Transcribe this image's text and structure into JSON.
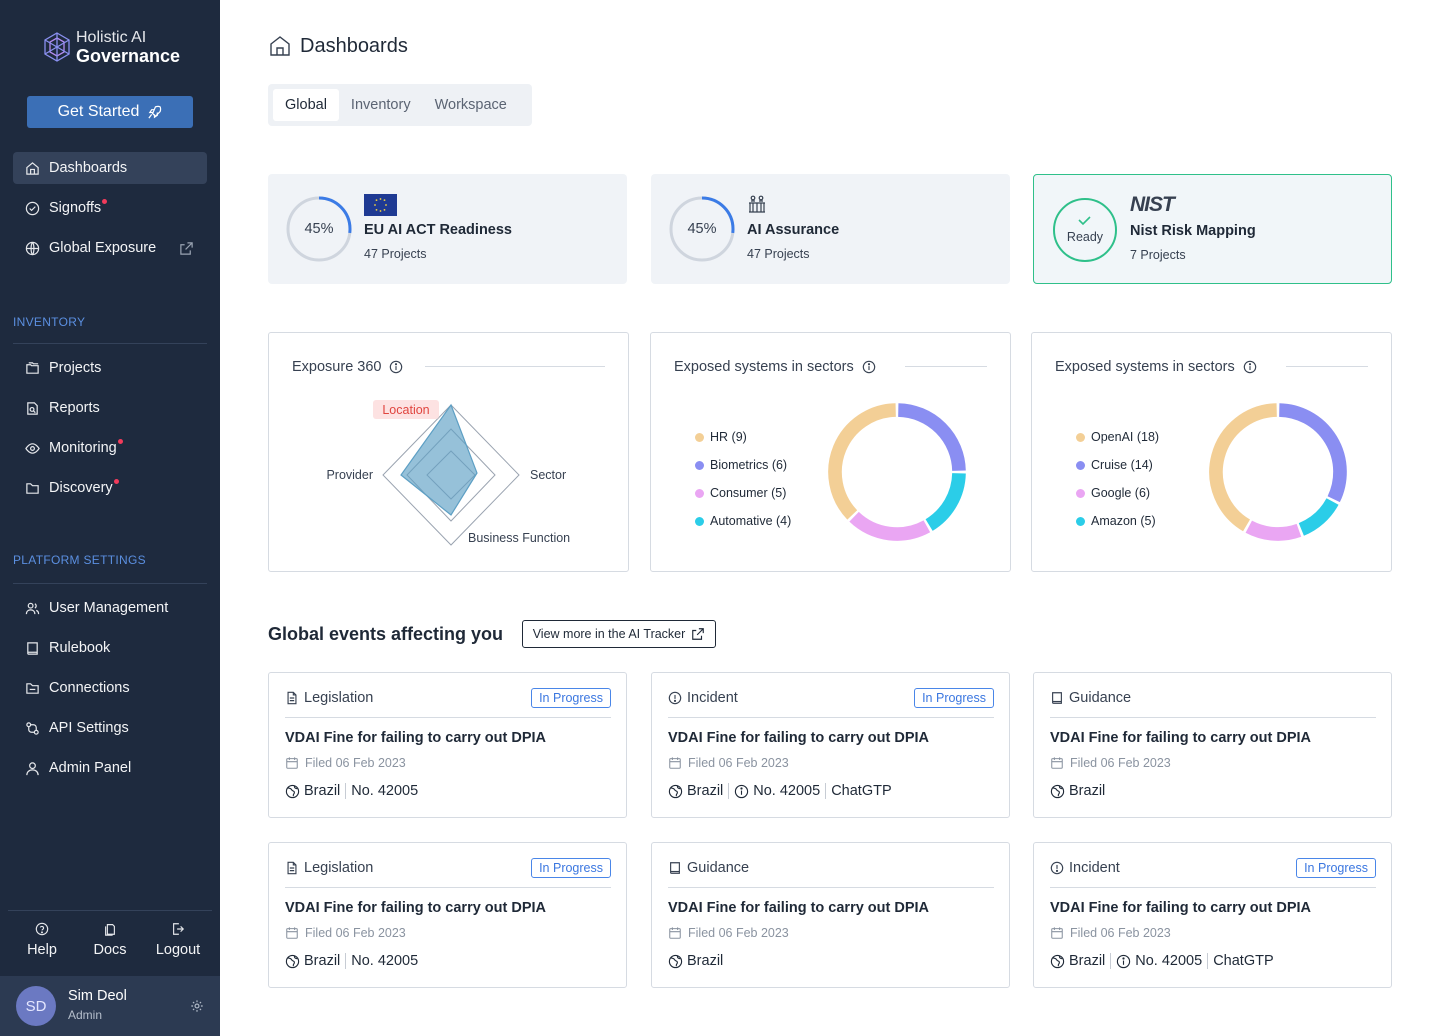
{
  "brand": {
    "line1": "Holistic AI",
    "line2": "Governance"
  },
  "sidebar": {
    "cta": "Get Started",
    "top_items": [
      {
        "label": "Dashboards",
        "icon": "home-icon",
        "active": true
      },
      {
        "label": "Signoffs",
        "icon": "signoff-icon",
        "dot": true
      },
      {
        "label": "Global Exposure",
        "icon": "globe-icon",
        "external": true
      }
    ],
    "inventory_label": "INVENTORY",
    "inventory_items": [
      {
        "label": "Projects",
        "icon": "projects-icon"
      },
      {
        "label": "Reports",
        "icon": "reports-icon"
      },
      {
        "label": "Monitoring",
        "icon": "eye-icon",
        "dot": true
      },
      {
        "label": "Discovery",
        "icon": "folder-icon",
        "dot": true
      }
    ],
    "platform_label": "PLATFORM SETTINGS",
    "platform_items": [
      {
        "label": "User Management",
        "icon": "users-icon"
      },
      {
        "label": "Rulebook",
        "icon": "book-icon"
      },
      {
        "label": "Connections",
        "icon": "connections-icon"
      },
      {
        "label": "API Settings",
        "icon": "api-icon"
      },
      {
        "label": "Admin Panel",
        "icon": "admin-icon"
      }
    ],
    "bottom_links": {
      "help": "Help",
      "docs": "Docs",
      "logout": "Logout"
    },
    "user": {
      "initials": "SD",
      "name": "Sim Deol",
      "role": "Admin"
    }
  },
  "header": {
    "title": "Dashboards"
  },
  "tabs": [
    {
      "label": "Global",
      "active": true
    },
    {
      "label": "Inventory"
    },
    {
      "label": "Workspace"
    }
  ],
  "stat_cards": [
    {
      "percent": 45,
      "percent_label": "45%",
      "title": "EU AI ACT Readiness",
      "subtitle": "47 Projects"
    },
    {
      "percent": 45,
      "percent_label": "45%",
      "title": "AI Assurance",
      "subtitle": "47 Projects"
    },
    {
      "status": "Ready",
      "logo": "NIST",
      "title": "Nist Risk Mapping",
      "subtitle": "7 Projects"
    }
  ],
  "radar": {
    "title": "Exposure 360",
    "axes": [
      "Location",
      "Sector",
      "Business Function",
      "Provider"
    ],
    "highlighted_axis": "Location"
  },
  "chart_data": [
    {
      "type": "pie",
      "title": "Exposed systems in sectors",
      "categories": [
        "HR",
        "Biometrics",
        "Consumer",
        "Automative"
      ],
      "labels": [
        "HR (9)",
        "Biometrics (6)",
        "Consumer (5)",
        "Automative (4)"
      ],
      "values": [
        9,
        6,
        5,
        4
      ],
      "colors": [
        "#f3cf96",
        "#8a8ef2",
        "#eaa6f3",
        "#2bcde8"
      ],
      "legend": "left"
    },
    {
      "type": "pie",
      "title": "Exposed systems in sectors",
      "categories": [
        "OpenAI",
        "Cruise",
        "Google",
        "Amazon"
      ],
      "labels": [
        "OpenAI (18)",
        "Cruise (14)",
        "Google (6)",
        "Amazon (5)"
      ],
      "values": [
        18,
        14,
        6,
        5
      ],
      "colors": [
        "#f3cf96",
        "#8a8ef2",
        "#eaa6f3",
        "#2bcde8"
      ],
      "legend": "left"
    }
  ],
  "events": {
    "title": "Global events affecting you",
    "tracker_button": "View more in the AI Tracker",
    "cards": [
      {
        "type": "Legislation",
        "icon": "document-icon",
        "badge": "In Progress",
        "title": "VDAI Fine for failing to carry out DPIA",
        "filed": "Filed 06 Feb 2023",
        "country": "Brazil",
        "number": "No. 42005"
      },
      {
        "type": "Incident",
        "icon": "alert-icon",
        "badge": "In Progress",
        "title": "VDAI Fine for failing to carry out DPIA",
        "filed": "Filed 06 Feb 2023",
        "country": "Brazil",
        "number": "No. 42005",
        "system": "ChatGTP"
      },
      {
        "type": "Guidance",
        "icon": "book-icon",
        "title": "VDAI Fine for failing to carry out DPIA",
        "filed": "Filed 06 Feb 2023",
        "country": "Brazil"
      },
      {
        "type": "Legislation",
        "icon": "document-icon",
        "badge": "In Progress",
        "title": "VDAI Fine for failing to carry out DPIA",
        "filed": "Filed 06 Feb 2023",
        "country": "Brazil",
        "number": "No. 42005"
      },
      {
        "type": "Guidance",
        "icon": "book-icon",
        "title": "VDAI Fine for failing to carry out DPIA",
        "filed": "Filed 06 Feb 2023",
        "country": "Brazil"
      },
      {
        "type": "Incident",
        "icon": "alert-icon",
        "badge": "In Progress",
        "title": "VDAI Fine for failing to carry out DPIA",
        "filed": "Filed 06 Feb 2023",
        "country": "Brazil",
        "number": "No. 42005",
        "system": "ChatGTP"
      }
    ]
  },
  "colors": {
    "sidebar": "#1e2a3e",
    "accent": "#3b6fb6",
    "ready": "#2fc08a",
    "badge": "#3b77e0",
    "dot": "#f23b5b"
  }
}
